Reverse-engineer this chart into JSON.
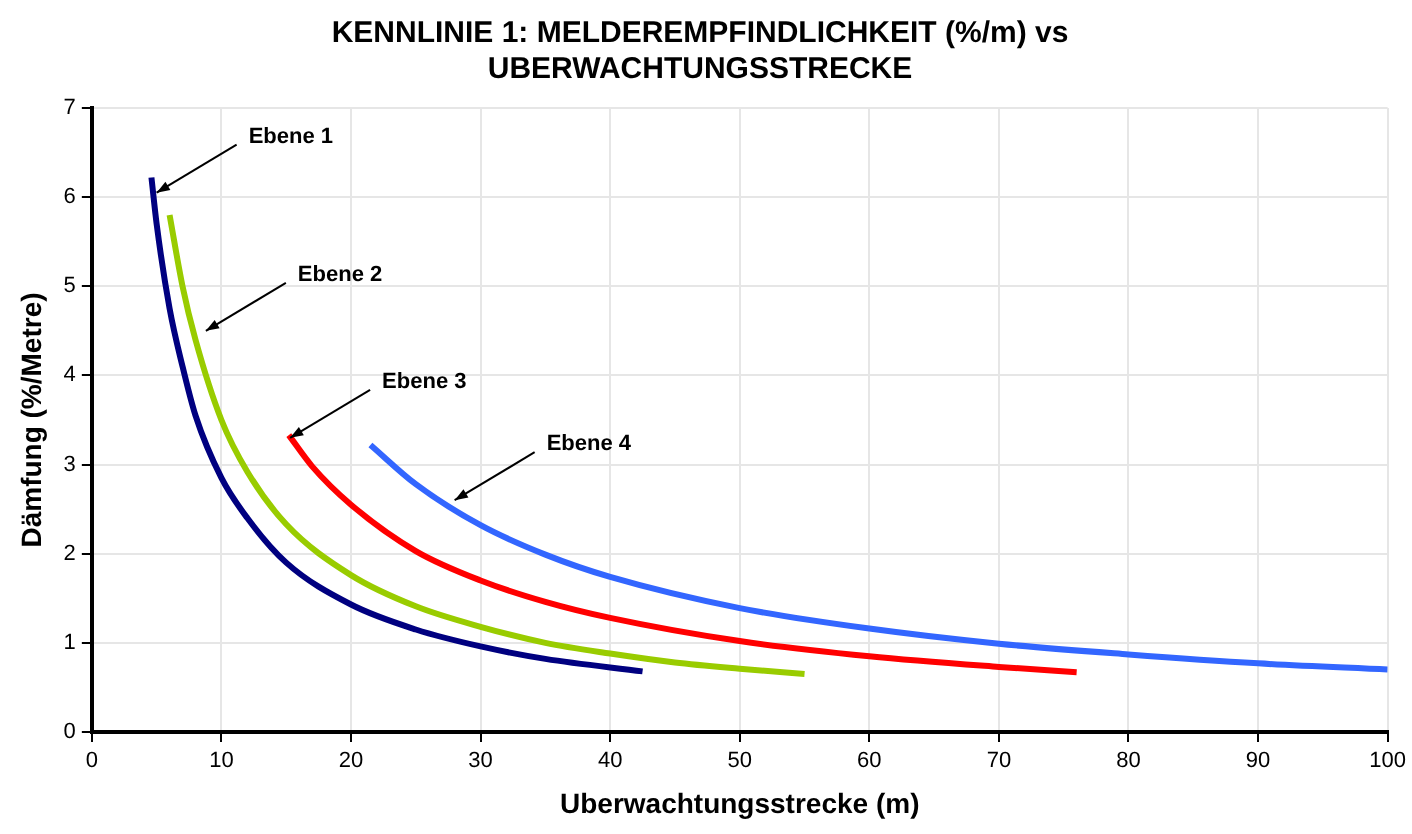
{
  "chart_data": {
    "type": "line",
    "title": "KENNLINIE 1: MELDEREMPFINDLICHKEIT (%/m) vs UBERWACHTUNGSSTRECKE",
    "xlabel": "Uberwachtungsstrecke (m)",
    "ylabel": "Dämfung (%/Metre)",
    "xlim": [
      0,
      100
    ],
    "xticks": [
      0,
      10,
      20,
      30,
      40,
      50,
      60,
      70,
      80,
      90,
      100
    ],
    "ylim": [
      0,
      7
    ],
    "yticks": [
      0,
      1,
      2,
      3,
      4,
      5,
      6,
      7
    ],
    "grid": true,
    "legend": false,
    "marker": "none",
    "line_style": "solid",
    "series": [
      {
        "color": "#000080",
        "x": [
          4.6,
          5,
          6,
          7,
          8,
          10,
          12,
          15,
          20,
          25,
          30,
          35,
          42.5
        ],
        "values": [
          6.22,
          5.7,
          4.75,
          4.1,
          3.55,
          2.85,
          2.4,
          1.9,
          1.43,
          1.15,
          0.96,
          0.82,
          0.68
        ]
      },
      {
        "color": "#99cc00",
        "x": [
          6,
          7,
          8,
          10,
          12,
          15,
          20,
          25,
          30,
          35,
          40,
          45,
          50,
          55
        ],
        "values": [
          5.8,
          5.0,
          4.4,
          3.5,
          2.92,
          2.33,
          1.76,
          1.41,
          1.18,
          1.0,
          0.88,
          0.78,
          0.71,
          0.65
        ]
      },
      {
        "color": "#ff0000",
        "x": [
          15.2,
          17,
          20,
          25,
          30,
          35,
          40,
          50,
          60,
          70,
          76
        ],
        "values": [
          3.33,
          2.98,
          2.55,
          2.03,
          1.7,
          1.46,
          1.28,
          1.02,
          0.85,
          0.73,
          0.67
        ]
      },
      {
        "color": "#3366ff",
        "x": [
          21.5,
          25,
          30,
          35,
          40,
          50,
          60,
          70,
          80,
          90,
          100
        ],
        "values": [
          3.22,
          2.78,
          2.32,
          1.99,
          1.74,
          1.39,
          1.16,
          0.99,
          0.87,
          0.77,
          0.7
        ]
      }
    ],
    "annotations": [
      {
        "text": "Ebene 1",
        "x": 5,
        "y": 6.05
      },
      {
        "text": "Ebene 2",
        "x": 8.8,
        "y": 4.5
      },
      {
        "text": "Ebene 3",
        "x": 15.3,
        "y": 3.3
      },
      {
        "text": "Ebene 4",
        "x": 28,
        "y": 2.6
      }
    ]
  }
}
